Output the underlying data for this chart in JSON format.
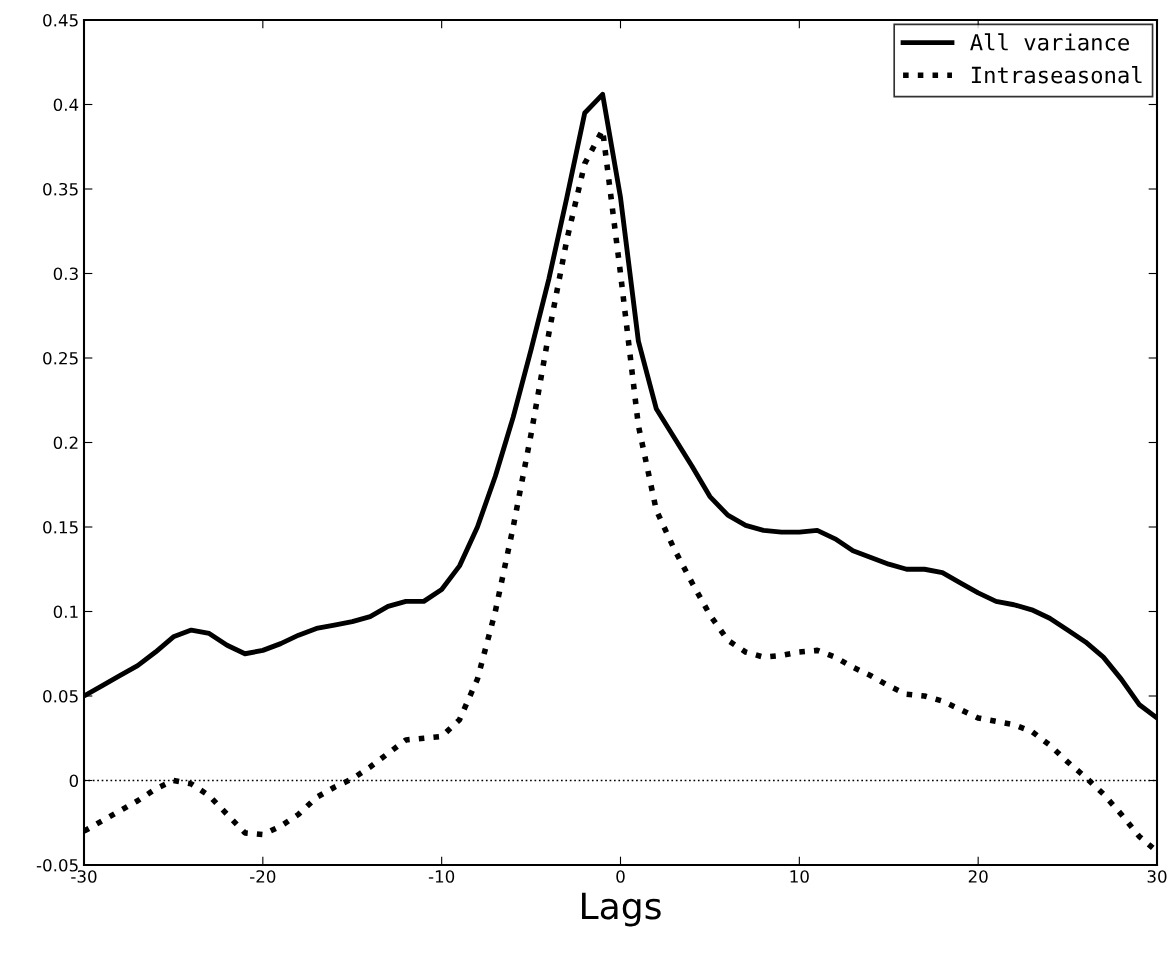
{
  "chart_data": {
    "type": "line",
    "xlabel": "Lags",
    "x": [
      -30,
      -29,
      -28,
      -27,
      -26,
      -25,
      -24,
      -23,
      -22,
      -21,
      -20,
      -19,
      -18,
      -17,
      -16,
      -15,
      -14,
      -13,
      -12,
      -11,
      -10,
      -9,
      -8,
      -7,
      -6,
      -5,
      -4,
      -3,
      -2,
      -1,
      0,
      1,
      2,
      3,
      4,
      5,
      6,
      7,
      8,
      9,
      10,
      11,
      12,
      13,
      14,
      15,
      16,
      17,
      18,
      19,
      20,
      21,
      22,
      23,
      24,
      25,
      26,
      27,
      28,
      29,
      30
    ],
    "series": [
      {
        "name": "All variance",
        "color": "#000000",
        "line_style": "solid",
        "values": [
          0.05,
          0.056,
          0.062,
          0.068,
          0.076,
          0.085,
          0.089,
          0.087,
          0.08,
          0.075,
          0.077,
          0.081,
          0.086,
          0.09,
          0.092,
          0.094,
          0.097,
          0.103,
          0.106,
          0.106,
          0.113,
          0.127,
          0.15,
          0.18,
          0.215,
          0.255,
          0.297,
          0.345,
          0.395,
          0.406,
          0.345,
          0.26,
          0.22,
          0.203,
          0.186,
          0.168,
          0.157,
          0.151,
          0.148,
          0.147,
          0.147,
          0.148,
          0.143,
          0.136,
          0.132,
          0.128,
          0.125,
          0.125,
          0.123,
          0.117,
          0.111,
          0.106,
          0.104,
          0.101,
          0.096,
          0.089,
          0.082,
          0.073,
          0.06,
          0.045,
          0.037
        ]
      },
      {
        "name": "Intraseasonal",
        "color": "#000000",
        "line_style": "dotted",
        "values": [
          -0.03,
          -0.024,
          -0.018,
          -0.012,
          -0.005,
          0.0,
          -0.002,
          -0.009,
          -0.02,
          -0.031,
          -0.032,
          -0.027,
          -0.02,
          -0.01,
          -0.004,
          0.001,
          0.008,
          0.016,
          0.024,
          0.025,
          0.026,
          0.036,
          0.06,
          0.1,
          0.15,
          0.205,
          0.265,
          0.32,
          0.365,
          0.385,
          0.3,
          0.21,
          0.16,
          0.137,
          0.117,
          0.098,
          0.083,
          0.076,
          0.073,
          0.074,
          0.076,
          0.077,
          0.073,
          0.067,
          0.062,
          0.056,
          0.051,
          0.05,
          0.047,
          0.042,
          0.037,
          0.035,
          0.033,
          0.029,
          0.021,
          0.011,
          0.002,
          -0.008,
          -0.02,
          -0.033,
          -0.042
        ]
      }
    ],
    "xlim": [
      -30,
      30
    ],
    "xticks": [
      {
        "value": -30,
        "label": "-30"
      },
      {
        "value": -20,
        "label": "-20"
      },
      {
        "value": -10,
        "label": "-10"
      },
      0,
      10,
      20,
      30
    ],
    "ylim": [
      -0.05,
      0.45
    ],
    "yticks": [
      {
        "value": -0.05,
        "label": "-0.05"
      },
      0,
      0.05,
      0.1,
      0.15,
      0.2,
      0.25,
      0.3,
      0.35,
      0.4,
      0.45
    ],
    "ref_lines": [
      {
        "axis": "y",
        "value": 0,
        "color": "#000000",
        "line_style": "dotted"
      }
    ],
    "grid": false,
    "legend": "top right",
    "marker": "none"
  }
}
